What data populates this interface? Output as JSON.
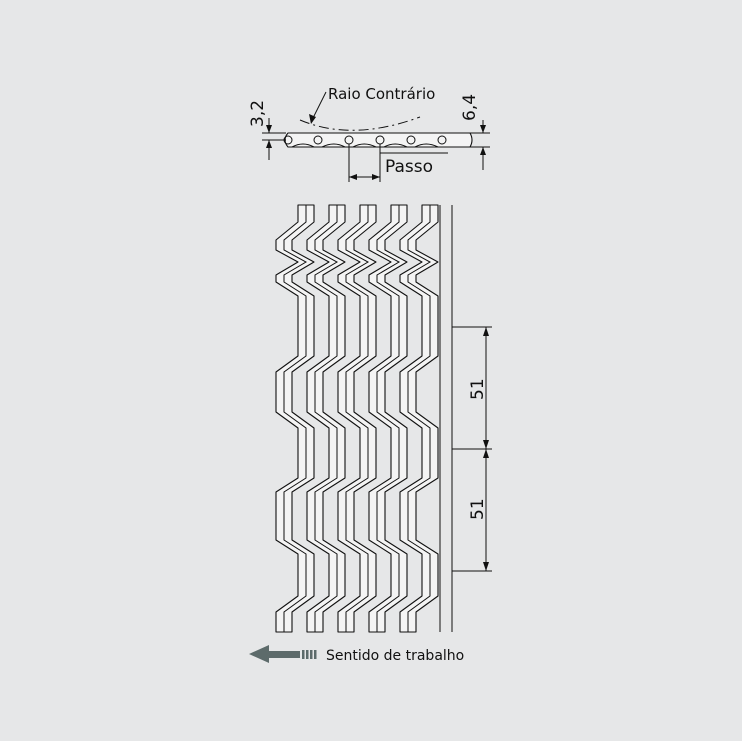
{
  "labels": {
    "reverse_radius": "Raio Contrário",
    "pitch": "Passo",
    "thickness_total": "6,4",
    "thickness_side": "3,2",
    "pitch_dim_1": "51",
    "pitch_dim_2": "51",
    "direction": "Sentido de trabalho"
  },
  "colors": {
    "background": "#e6e7e8",
    "line": "#111111",
    "arrow": "#5d6b6b"
  },
  "icons": {
    "direction_arrow": "left-arrow-icon"
  }
}
